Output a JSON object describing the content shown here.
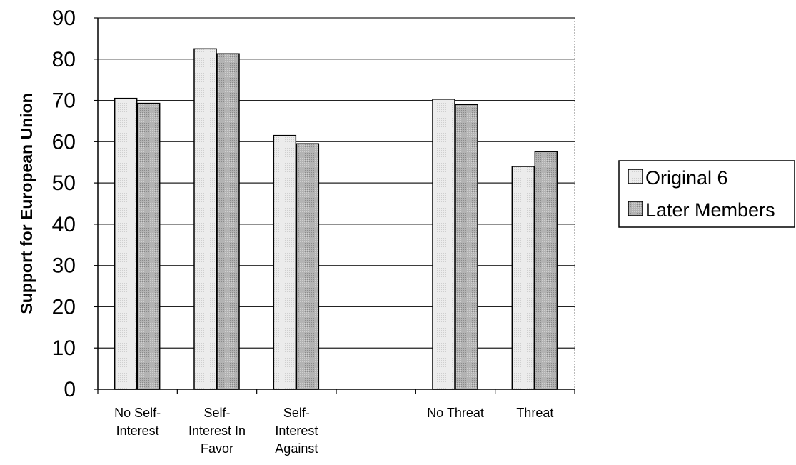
{
  "chart_data": {
    "type": "bar",
    "title": "",
    "xlabel": "",
    "ylabel": "Support for European Union",
    "ylim": [
      0,
      90
    ],
    "yticks": [
      0,
      10,
      20,
      30,
      40,
      50,
      60,
      70,
      80,
      90
    ],
    "categories": [
      [
        "No Self-",
        "Interest"
      ],
      [
        "Self-",
        "Interest In",
        "Favor"
      ],
      [
        "Self-",
        "Interest",
        "Against"
      ],
      [],
      [
        "No Threat"
      ],
      [
        "Threat"
      ]
    ],
    "series": [
      {
        "name": "Original 6",
        "color": "#e6e6e6",
        "values": [
          70.5,
          82.5,
          61.5,
          null,
          70.3,
          54.0
        ]
      },
      {
        "name": "Later Members",
        "color": "#a8a8a8",
        "values": [
          69.3,
          81.3,
          59.5,
          null,
          69.0,
          57.6
        ]
      }
    ],
    "grid": true,
    "legend_position": "right"
  }
}
